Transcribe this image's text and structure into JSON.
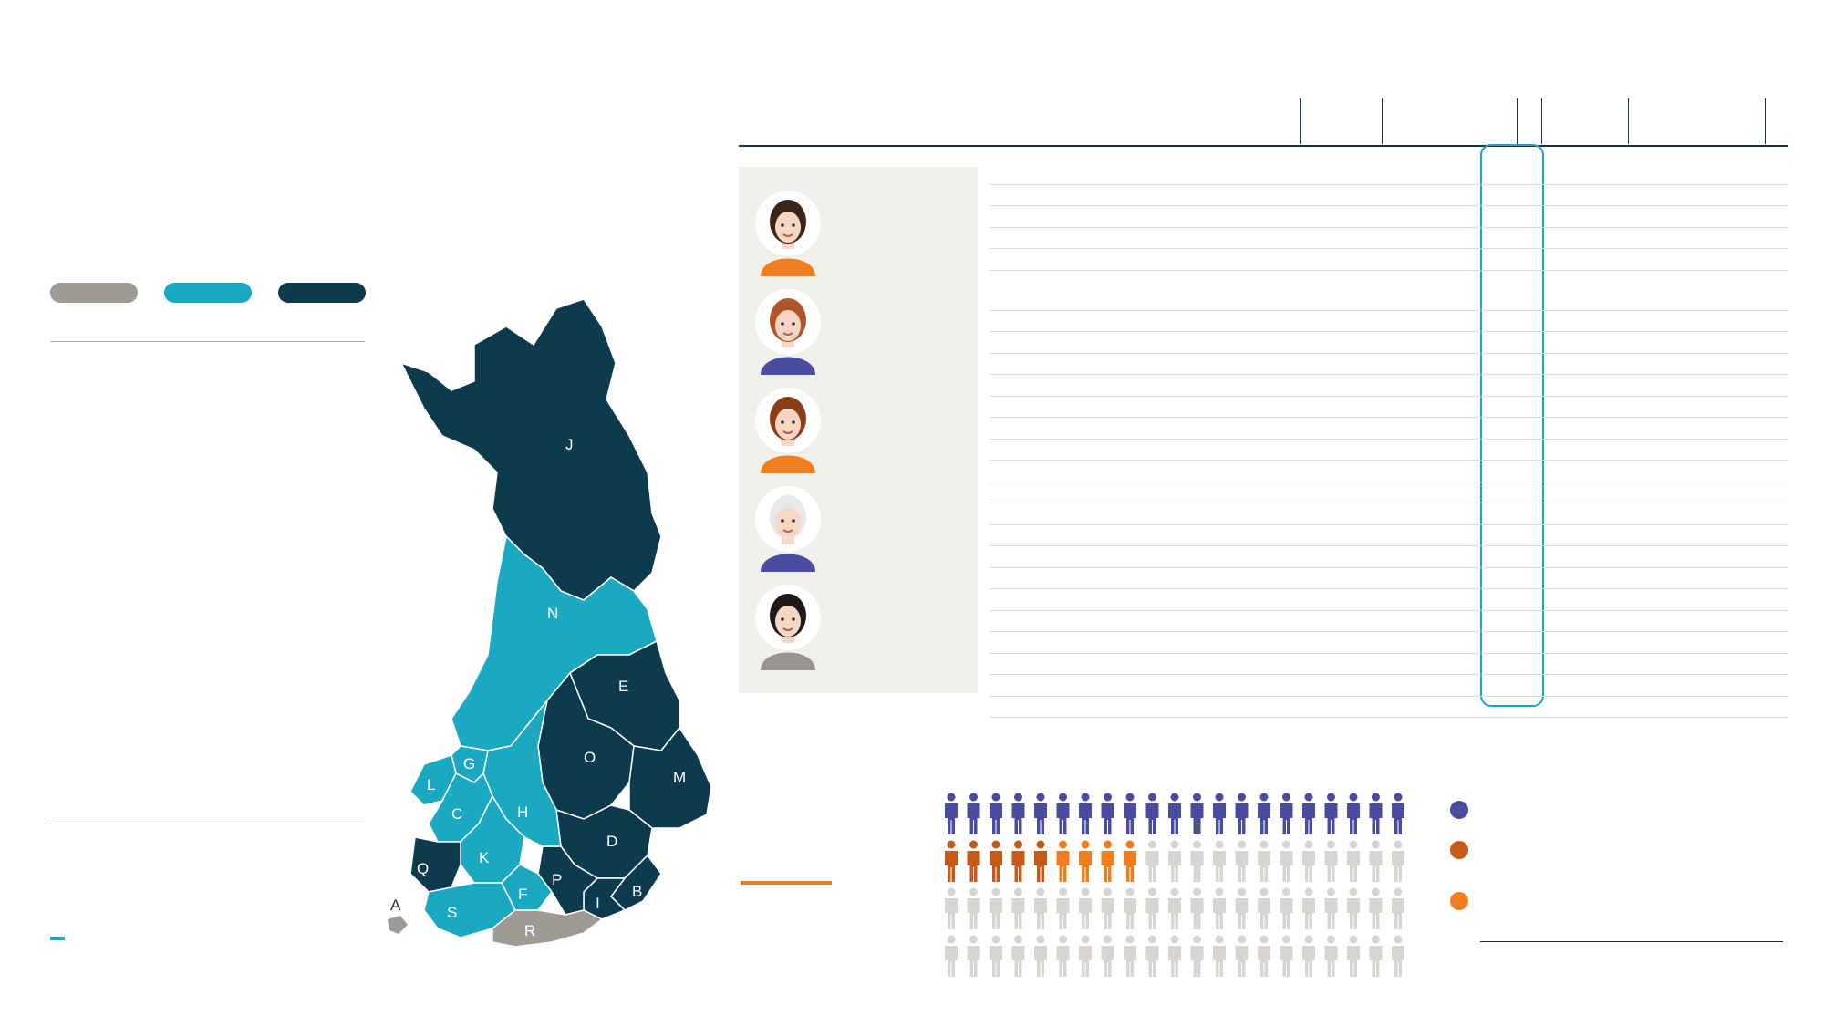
{
  "header": {
    "title": "",
    "subtitle": ""
  },
  "map_section": {
    "title": "",
    "legend": [
      {
        "label": "",
        "color": "#a09a95"
      },
      {
        "label": "",
        "color": "#1ba9c1"
      },
      {
        "label": "",
        "color": "#0d3a4c"
      }
    ],
    "col_region": "",
    "col_count": "",
    "col_pct": "",
    "rows": [
      {
        "code": "",
        "name": "",
        "count": "",
        "pct": ""
      },
      {
        "code": "",
        "name": "",
        "count": "",
        "pct": ""
      },
      {
        "code": "",
        "name": "",
        "count": "",
        "pct": ""
      },
      {
        "code": "",
        "name": "",
        "count": "",
        "pct": ""
      },
      {
        "code": "",
        "name": "",
        "count": "",
        "pct": ""
      },
      {
        "code": "",
        "name": "",
        "count": "",
        "pct": ""
      },
      {
        "code": "",
        "name": "",
        "count": "",
        "pct": ""
      },
      {
        "code": "",
        "name": "",
        "count": "",
        "pct": ""
      },
      {
        "code": "",
        "name": "",
        "count": "",
        "pct": ""
      },
      {
        "code": "",
        "name": "",
        "count": "",
        "pct": ""
      },
      {
        "code": "",
        "name": "",
        "count": "",
        "pct": ""
      },
      {
        "code": "",
        "name": "",
        "count": "",
        "pct": ""
      },
      {
        "code": "",
        "name": "",
        "count": "",
        "pct": ""
      },
      {
        "code": "",
        "name": "",
        "count": "",
        "pct": ""
      },
      {
        "code": "",
        "name": "",
        "count": "",
        "pct": ""
      },
      {
        "code": "",
        "name": "",
        "count": "",
        "pct": ""
      },
      {
        "code": "",
        "name": "",
        "count": "",
        "pct": ""
      },
      {
        "code": "",
        "name": "",
        "count": "",
        "pct": ""
      },
      {
        "code": "",
        "name": "",
        "count": "",
        "pct": ""
      }
    ],
    "total": {
      "name": "",
      "count": "",
      "pct": ""
    }
  },
  "logo": {
    "top": "",
    "bottom": ""
  },
  "footnote": "",
  "occupations": {
    "title": "",
    "col_headers": {
      "vanhuus_pct": "",
      "tyokyvyttomyys_pct": "",
      "osatyokyvyttomyys_pct": "",
      "kaikki_pct": "",
      "vanhuus": "",
      "tyokyvyttomyys": "",
      "osatyokyvyttomyys": "",
      "kaikki": ""
    },
    "rows": [
      {
        "name": "",
        "v1": "",
        "v2": "",
        "v3": "",
        "v4": "",
        "n1": "",
        "n2": "",
        "n3": "",
        "n4": ""
      },
      {
        "name": "",
        "v1": "",
        "v2": "",
        "v3": "",
        "v4": "",
        "n1": "",
        "n2": "",
        "n3": "",
        "n4": ""
      },
      {
        "name": "",
        "v1": "",
        "v2": "",
        "v3": "",
        "v4": "",
        "n1": "",
        "n2": "",
        "n3": "",
        "n4": ""
      },
      {
        "name": "",
        "v1": "",
        "v2": "",
        "v3": "",
        "v4": "",
        "n1": "",
        "n2": "",
        "n3": "",
        "n4": ""
      },
      {
        "name": "",
        "v1": "",
        "v2": "",
        "v3": "",
        "v4": "",
        "n1": "",
        "n2": "",
        "n3": "",
        "n4": ""
      },
      {
        "name": "",
        "v1": "",
        "v2": "",
        "v3": "",
        "v4": "",
        "n1": "",
        "n2": "",
        "n3": "",
        "n4": ""
      },
      {
        "name": "",
        "v1": "",
        "v2": "",
        "v3": "",
        "v4": "",
        "n1": "",
        "n2": "",
        "n3": "",
        "n4": ""
      },
      {
        "name": "",
        "v1": "",
        "v2": "",
        "v3": "",
        "v4": "",
        "n1": "",
        "n2": "",
        "n3": "",
        "n4": ""
      },
      {
        "name": "",
        "v1": "",
        "v2": "",
        "v3": "",
        "v4": "",
        "n1": "",
        "n2": "",
        "n3": "",
        "n4": ""
      },
      {
        "name": "",
        "v1": "",
        "v2": "",
        "v3": "",
        "v4": "",
        "n1": "",
        "n2": "",
        "n3": "",
        "n4": ""
      },
      {
        "name": "",
        "v1": "",
        "v2": "",
        "v3": "",
        "v4": "",
        "n1": "",
        "n2": "",
        "n3": "",
        "n4": ""
      },
      {
        "name": "",
        "v1": "",
        "v2": "",
        "v3": "",
        "v4": "",
        "n1": "",
        "n2": "",
        "n3": "",
        "n4": ""
      },
      {
        "name": "",
        "v1": "",
        "v2": "",
        "v3": "",
        "v4": "",
        "n1": "",
        "n2": "",
        "n3": "",
        "n4": ""
      },
      {
        "name": "",
        "v1": "",
        "v2": "",
        "v3": "",
        "v4": "",
        "n1": "",
        "n2": "",
        "n3": "",
        "n4": ""
      },
      {
        "name": "",
        "v1": "",
        "v2": "",
        "v3": "",
        "v4": "",
        "n1": "",
        "n2": "",
        "n3": "",
        "n4": ""
      },
      {
        "name": "",
        "v1": "",
        "v2": "",
        "v3": "",
        "v4": "",
        "n1": "",
        "n2": "",
        "n3": "",
        "n4": ""
      },
      {
        "name": "",
        "v1": "",
        "v2": "",
        "v3": "",
        "v4": "",
        "n1": "",
        "n2": "",
        "n3": "",
        "n4": ""
      },
      {
        "name": "",
        "v1": "",
        "v2": "",
        "v3": "",
        "v4": "",
        "n1": "",
        "n2": "",
        "n3": "",
        "n4": ""
      },
      {
        "name": "",
        "v1": "",
        "v2": "",
        "v3": "",
        "v4": "",
        "n1": "",
        "n2": "",
        "n3": "",
        "n4": ""
      },
      {
        "name": "",
        "v1": "",
        "v2": "",
        "v3": "",
        "v4": "",
        "n1": "",
        "n2": "",
        "n3": "",
        "n4": ""
      },
      {
        "name": "",
        "v1": "",
        "v2": "",
        "v3": "",
        "v4": "",
        "n1": "",
        "n2": "",
        "n3": "",
        "n4": ""
      },
      {
        "name": "",
        "v1": "",
        "v2": "",
        "v3": "",
        "v4": "",
        "n1": "",
        "n2": "",
        "n3": "",
        "n4": ""
      },
      {
        "name": "",
        "v1": "",
        "v2": "",
        "v3": "",
        "v4": "",
        "n1": "",
        "n2": "",
        "n3": "",
        "n4": ""
      },
      {
        "name": "",
        "v1": "",
        "v2": "",
        "v3": "",
        "v4": "",
        "n1": "",
        "n2": "",
        "n3": "",
        "n4": ""
      },
      {
        "name": "",
        "v1": "",
        "v2": "",
        "v3": "",
        "v4": "",
        "n1": "",
        "n2": "",
        "n3": "",
        "n4": ""
      }
    ]
  },
  "highlights": [
    {
      "label": "",
      "pct": "",
      "unit": "",
      "icon": "woman-avatar-icon"
    },
    {
      "label": "",
      "pct": "",
      "unit": "",
      "icon": "woman-avatar-icon"
    },
    {
      "label": "",
      "pct": "",
      "unit": "",
      "icon": "man-avatar-icon"
    },
    {
      "label": "",
      "pct": "",
      "unit": "",
      "icon": "older-woman-avatar-icon"
    },
    {
      "label": "",
      "pct": "",
      "unit": "",
      "icon": "woman-avatar-icon"
    }
  ],
  "distribution": {
    "title": "",
    "headline_pct": "",
    "headline_unit": "",
    "items": [
      {
        "name": "",
        "pct": "",
        "count": "",
        "unit": "",
        "color": "#4a4c9f"
      },
      {
        "name": "",
        "pct": "",
        "count": "",
        "unit": "",
        "color": "#c65a18"
      },
      {
        "name": "",
        "pct": "",
        "count": "",
        "unit": "",
        "color": "#f07d1e"
      }
    ],
    "totals": [
      {
        "name": "",
        "count": "",
        "unit": ""
      },
      {
        "name": "",
        "count": "",
        "unit": ""
      }
    ],
    "icon_counts": {
      "per_row": 21,
      "rows": 4,
      "vanhuus": 23,
      "tyokyvyttomyys": 5,
      "osatyokyvyttomyys": 4,
      "rest_color": "#d8d4cf"
    }
  },
  "chart_data": [
    {
      "type": "table",
      "title": "",
      "columns": [
        "",
        "",
        ""
      ],
      "rows": [
        [
          "",
          "",
          ""
        ],
        [
          "",
          "",
          ""
        ],
        [
          "",
          "",
          ""
        ],
        [
          "",
          "",
          ""
        ],
        [
          "",
          "",
          ""
        ],
        [
          "",
          "",
          ""
        ],
        [
          "",
          "",
          ""
        ],
        [
          "",
          "",
          ""
        ],
        [
          "",
          "",
          ""
        ],
        [
          "",
          "",
          ""
        ],
        [
          "",
          "",
          ""
        ],
        [
          "",
          "",
          ""
        ],
        [
          "",
          "",
          ""
        ],
        [
          "",
          "",
          ""
        ],
        [
          "",
          "",
          ""
        ],
        [
          "",
          "",
          ""
        ],
        [
          "",
          "",
          ""
        ],
        [
          "",
          "",
          ""
        ],
        [
          "",
          "",
          ""
        ],
        [
          "",
          "",
          ""
        ]
      ]
    },
    {
      "type": "bar",
      "title": "",
      "categories": [
        "",
        "",
        ""
      ],
      "values": [
        0,
        0,
        0
      ]
    }
  ]
}
